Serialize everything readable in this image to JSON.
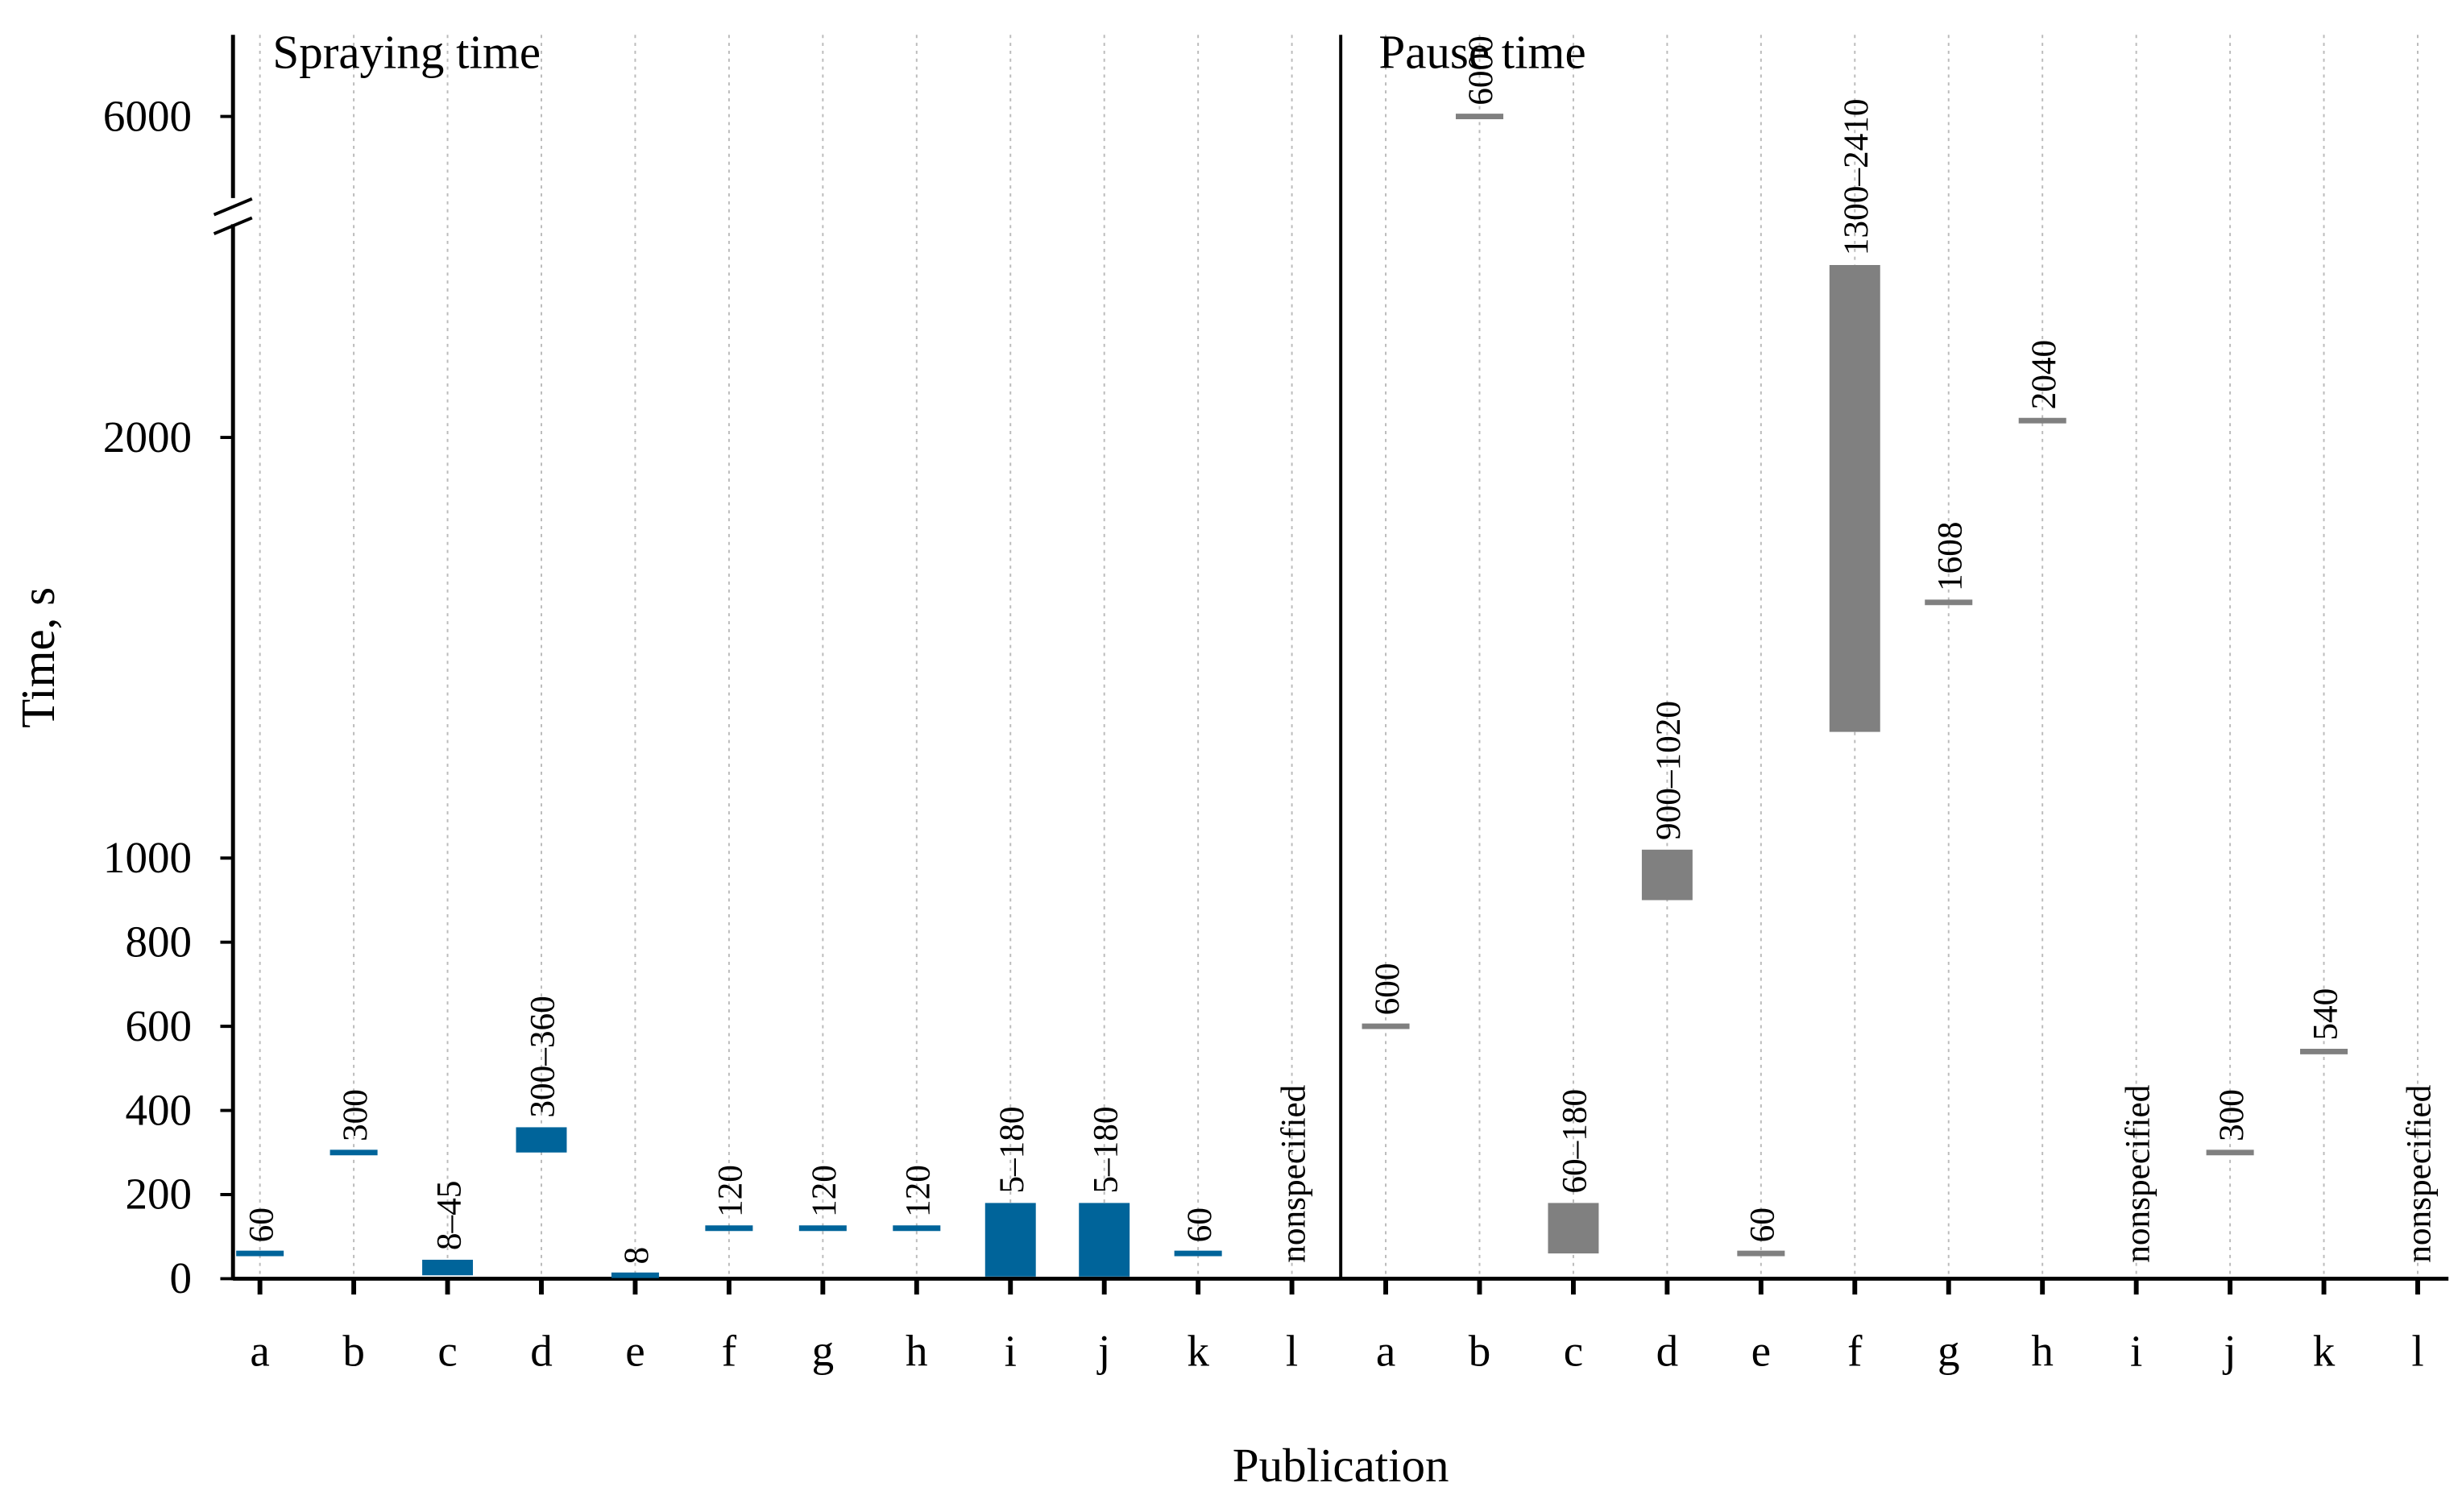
{
  "chart_data": {
    "type": "floating-bar",
    "y_label": "Time, s",
    "x_label": "Publication",
    "categories": [
      "a",
      "b",
      "c",
      "d",
      "e",
      "f",
      "g",
      "h",
      "i",
      "j",
      "k",
      "l"
    ],
    "series": [
      {
        "name": "Spraying time",
        "color": "#00649a",
        "values": [
          60,
          300,
          [
            8,
            45
          ],
          [
            300,
            360
          ],
          8,
          120,
          120,
          120,
          [
            5,
            180
          ],
          [
            5,
            180
          ],
          60,
          null
        ],
        "value_labels": [
          "60",
          "300",
          "8–45",
          "300–360",
          "8",
          "120",
          "120",
          "120",
          "5–180",
          "5–180",
          "60",
          "nonspecified"
        ]
      },
      {
        "name": "Pause time",
        "color": "#808080",
        "values": [
          600,
          6000,
          [
            60,
            180
          ],
          [
            900,
            1020
          ],
          60,
          [
            1300,
            2410
          ],
          1608,
          2040,
          null,
          300,
          540,
          null
        ],
        "value_labels": [
          "600",
          "6000",
          "60–180",
          "900–1020",
          "60",
          "1300–2410",
          "1608",
          "2040",
          "nonspecified",
          "300",
          "540",
          "nonspecified"
        ]
      }
    ],
    "ylim": [
      0,
      6200
    ],
    "y_break": [
      2475,
      5800
    ],
    "yticks": [
      0,
      200,
      400,
      600,
      800,
      1000,
      2000,
      6000
    ],
    "grid": "x-dotted"
  }
}
